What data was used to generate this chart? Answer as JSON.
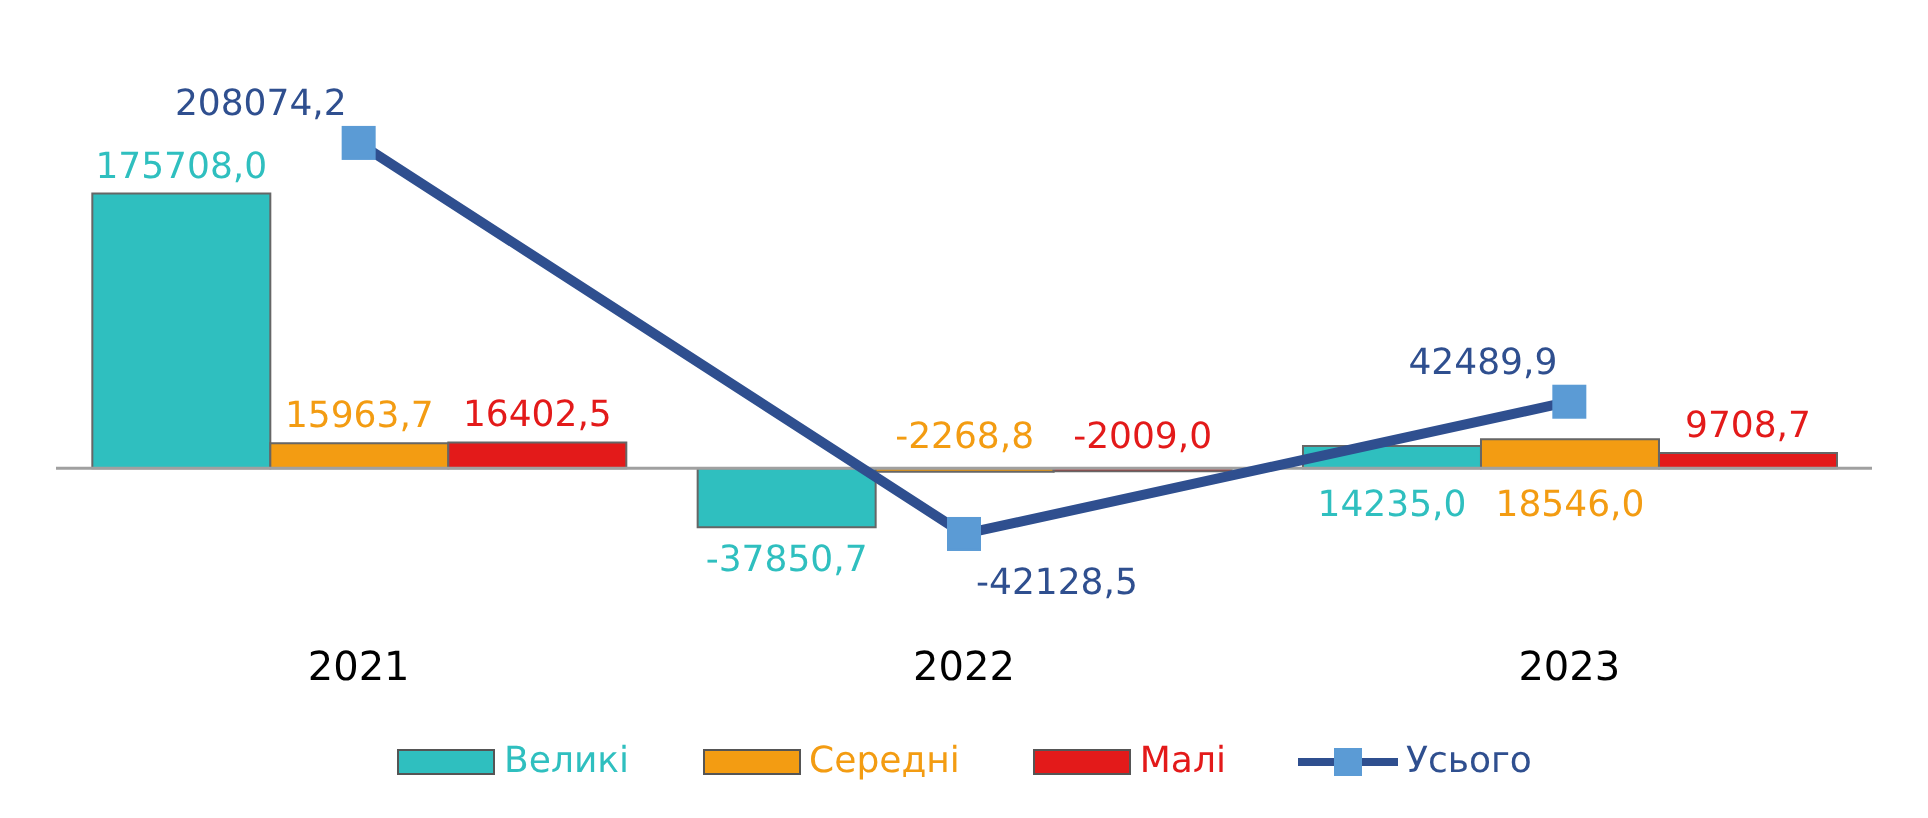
{
  "chart_data": {
    "type": "bar",
    "categories": [
      "2021",
      "2022",
      "2023"
    ],
    "series": [
      {
        "name": "Великі",
        "color": "#2fbfbf",
        "values": [
          175708.0,
          -37850.7,
          14235.0
        ],
        "value_labels": [
          "175708,0",
          "-37850,7",
          "14235,0"
        ]
      },
      {
        "name": "Середні",
        "color": "#f39c12",
        "values": [
          15963.7,
          -2268.8,
          18546.0
        ],
        "value_labels": [
          "15963,7",
          "-2268,8",
          "18546,0"
        ]
      },
      {
        "name": "Малі",
        "color": "#e31a1a",
        "values": [
          16402.5,
          -2009.0,
          9708.7
        ],
        "value_labels": [
          "16402,5",
          "-2009,0",
          "9708,7"
        ]
      },
      {
        "name": "Усього",
        "type": "line",
        "color": "#2f4f8f",
        "values": [
          208074.2,
          -42128.5,
          42489.9
        ],
        "value_labels": [
          "208074,2",
          "-42128,5",
          "42489,9"
        ],
        "marker": "square"
      }
    ],
    "legend": "bottom",
    "tick_labels": "x"
  }
}
